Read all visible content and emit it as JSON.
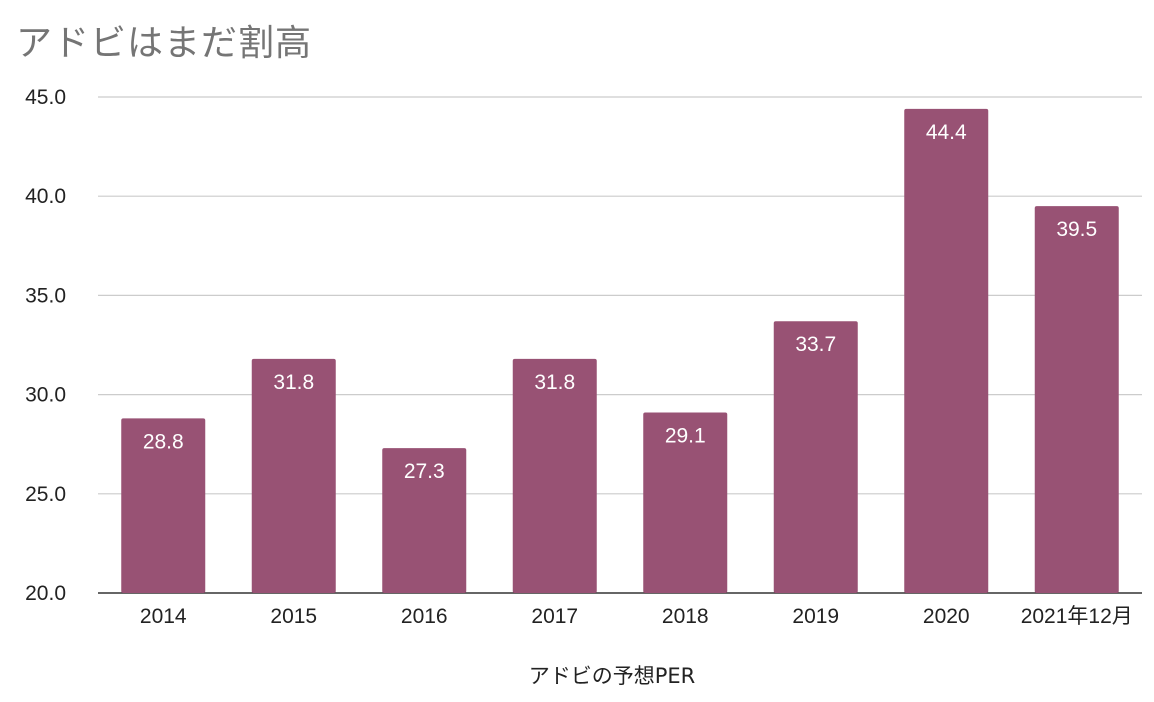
{
  "chart_data": {
    "type": "bar",
    "title": "アドビはまだ割高",
    "xlabel": "アドビの予想PER",
    "ylabel": "",
    "categories": [
      "2014",
      "2015",
      "2016",
      "2017",
      "2018",
      "2019",
      "2020",
      "2021年12月"
    ],
    "values": [
      28.8,
      31.8,
      27.3,
      31.8,
      29.1,
      33.7,
      44.4,
      39.5
    ],
    "data_labels": [
      "28.8",
      "31.8",
      "27.3",
      "31.8",
      "29.1",
      "33.7",
      "44.4",
      "39.5"
    ],
    "ylim": [
      20,
      45
    ],
    "yticks": [
      "20.0",
      "25.0",
      "30.0",
      "35.0",
      "40.0",
      "45.0"
    ],
    "grid": true,
    "bar_color": "#985274",
    "legend": "none"
  }
}
